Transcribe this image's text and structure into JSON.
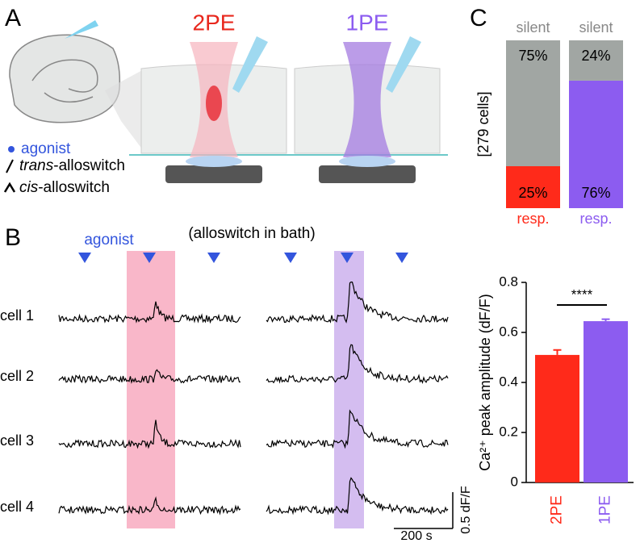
{
  "panel_a": {
    "label": "A",
    "conditions": [
      "2PE",
      "1PE"
    ],
    "legend": [
      [
        "agonist"
      ],
      [
        "trans",
        "-alloswitch"
      ],
      [
        "cis",
        "-alloswitch"
      ]
    ]
  },
  "panel_b": {
    "label": "B",
    "agonist": "agonist",
    "condition": "(alloswitch in bath)",
    "cells": [
      "cell 1",
      "cell 2",
      "cell 3",
      "cell 4"
    ],
    "scale_y": "0.5 dF/F",
    "scale_x": "200 s"
  },
  "panel_c": {
    "label": "C"
  },
  "chart_data": [
    {
      "type": "stacked_bar",
      "ylabel": "[279 cells]",
      "series": [
        {
          "name": "resp.",
          "colors": [
            "#ff2a1a",
            "#8c5cf0"
          ],
          "values": [
            25,
            76
          ],
          "value_labels": [
            "25%",
            "76%"
          ]
        },
        {
          "name": "silent",
          "color": "#a1a6a3",
          "values": [
            75,
            24
          ],
          "value_labels": [
            "75%",
            "24%"
          ]
        }
      ]
    },
    {
      "type": "bar",
      "ylabel": "Ca²⁺ peak amplitude (dF/F)",
      "categories": [
        "2PE",
        "1PE"
      ],
      "colors": [
        "#ff2a1a",
        "#8c5cf0"
      ],
      "values": [
        0.51,
        0.645
      ],
      "errors": [
        0.02,
        0.008
      ],
      "ylim": [
        0,
        0.8
      ],
      "yticks": [
        0,
        0.2,
        0.4,
        0.6,
        0.8
      ],
      "annotation": "****"
    }
  ]
}
